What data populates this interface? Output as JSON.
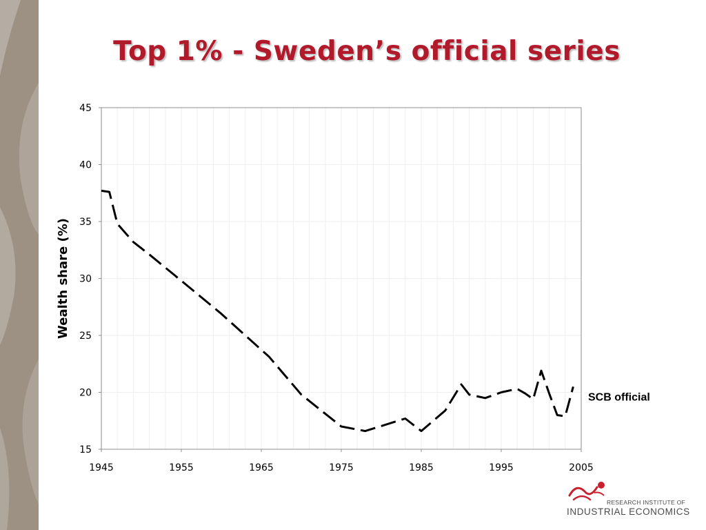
{
  "slide": {
    "title": "Top 1% - Sweden’s official series",
    "band_color": "#9d9184",
    "title_color": "#b11a2b"
  },
  "logo": {
    "line1": "RESEARCH INSTITUTE OF",
    "line2": "INDUSTRIAL ECONOMICS",
    "accent_color": "#c8202f"
  },
  "chart_data": {
    "type": "line",
    "title": "",
    "xlabel": "",
    "ylabel": "Wealth share (%)",
    "xlim": [
      1945,
      2005
    ],
    "ylim": [
      15,
      45
    ],
    "x_ticks": [
      "1945",
      "1955",
      "1965",
      "1975",
      "1985",
      "1995",
      "2005"
    ],
    "y_ticks": [
      "15",
      "20",
      "25",
      "30",
      "35",
      "40",
      "45"
    ],
    "grid": true,
    "series": [
      {
        "name": "SCB official",
        "style": "dashed",
        "color": "#000000",
        "x": [
          1945,
          1946,
          1947,
          1949,
          1951,
          1955,
          1960,
          1966,
          1970,
          1975,
          1978,
          1983,
          1985,
          1988,
          1990,
          1991,
          1993,
          1995,
          1997,
          1998,
          1999,
          2000,
          2001,
          2002,
          2003,
          2004
        ],
        "y": [
          37.7,
          37.6,
          34.8,
          33.2,
          32.1,
          29.8,
          26.9,
          23.1,
          19.8,
          17.0,
          16.6,
          17.7,
          16.6,
          18.4,
          20.7,
          19.8,
          19.5,
          20.0,
          20.3,
          19.9,
          19.4,
          21.9,
          19.9,
          18.0,
          17.9,
          20.5
        ]
      }
    ]
  }
}
